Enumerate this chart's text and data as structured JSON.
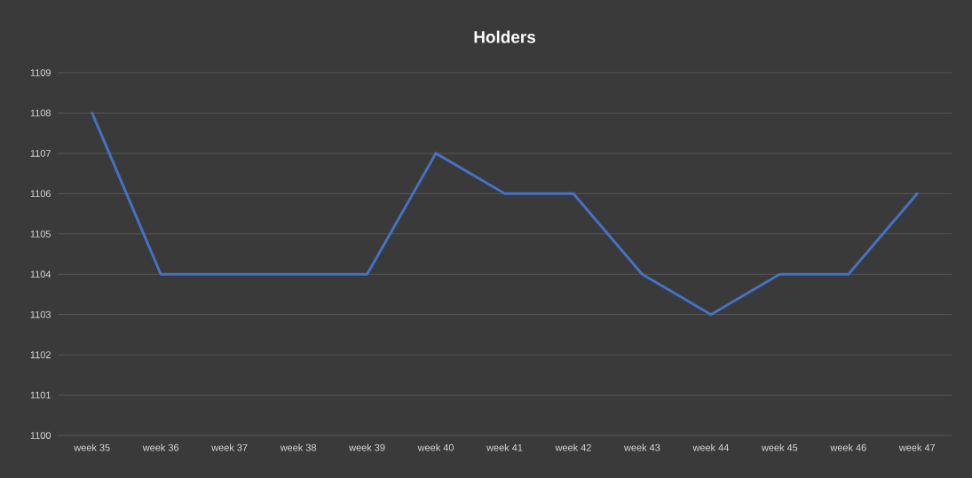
{
  "chart_data": {
    "type": "line",
    "title": "Holders",
    "categories": [
      "week 35",
      "week 36",
      "week 37",
      "week 38",
      "week 39",
      "week 40",
      "week 41",
      "week 42",
      "week 43",
      "week 44",
      "week 45",
      "week 46",
      "week 47"
    ],
    "values": [
      1108,
      1104,
      1104,
      1104,
      1104,
      1107,
      1106,
      1106,
      1104,
      1103,
      1104,
      1104,
      1106
    ],
    "color": "#4472c4",
    "ylim": [
      1100,
      1109
    ],
    "yticks": [
      1100,
      1101,
      1102,
      1103,
      1104,
      1105,
      1106,
      1107,
      1108,
      1109
    ],
    "grid": "y"
  }
}
